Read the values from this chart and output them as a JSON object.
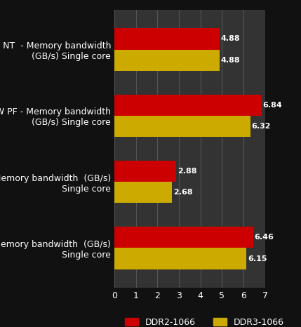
{
  "categories": [
    "Write NT  - Memory bandwidth\n(GB/s) Single core",
    "Read SW PF - Memory bandwidth\n(GB/s) Single core",
    "Write - Memory bandwidth  (GB/s)\nSingle core",
    "READ - Memory bandwidth  (GB/s)\nSingle core"
  ],
  "ddr2_values": [
    4.88,
    6.84,
    2.88,
    6.46
  ],
  "ddr3_values": [
    4.88,
    6.32,
    2.68,
    6.15
  ],
  "ddr2_color": "#CC0000",
  "ddr3_color": "#CCAA00",
  "background_color": "#111111",
  "plot_bg_color": "#333333",
  "grid_color": "#555555",
  "text_color": "#FFFFFF",
  "bar_label_color": "#FFFFFF",
  "xlim": [
    0,
    7
  ],
  "xticks": [
    0,
    1,
    2,
    3,
    4,
    5,
    6,
    7
  ],
  "legend_ddr2": "DDR2-1066",
  "legend_ddr3": "DDR3-1066",
  "bar_height": 0.32,
  "label_fontsize": 9,
  "tick_fontsize": 9,
  "legend_fontsize": 9,
  "value_fontsize": 8
}
